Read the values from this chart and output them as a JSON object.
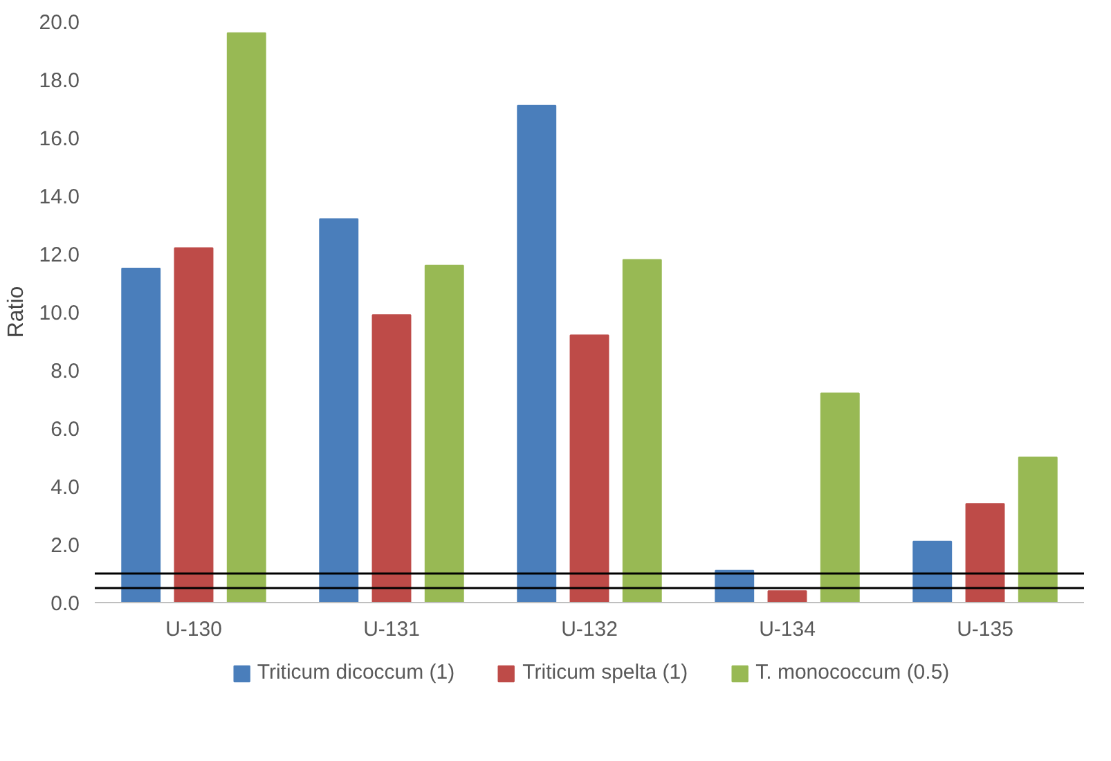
{
  "chart_data": {
    "type": "bar",
    "ylabel": "Ratio",
    "categories": [
      "U-130",
      "U-131",
      "U-132",
      "U-134",
      "U-135"
    ],
    "series": [
      {
        "name": "Triticum dicoccum (1)",
        "color": "#4a7ebb",
        "values": [
          11.5,
          13.2,
          17.1,
          1.1,
          2.1
        ]
      },
      {
        "name": "Triticum spelta (1)",
        "color": "#be4b48",
        "values": [
          12.2,
          9.9,
          9.2,
          0.4,
          3.4
        ]
      },
      {
        "name": "T. monococcum (0.5)",
        "color": "#98b954",
        "values": [
          19.6,
          11.6,
          11.8,
          7.2,
          5.0
        ]
      }
    ],
    "ylim": [
      0,
      20
    ],
    "yticks": [
      {
        "value": 0,
        "label": "0.0"
      },
      {
        "value": 2,
        "label": "2.0"
      },
      {
        "value": 4,
        "label": "4.0"
      },
      {
        "value": 6,
        "label": "6.0"
      },
      {
        "value": 8,
        "label": "8.0"
      },
      {
        "value": 10,
        "label": "10.0"
      },
      {
        "value": 12,
        "label": "12.0"
      },
      {
        "value": 14,
        "label": "14.0"
      },
      {
        "value": 16,
        "label": "16.0"
      },
      {
        "value": 18,
        "label": "18.0"
      },
      {
        "value": 20,
        "label": "20.0"
      }
    ],
    "ref_lines": [
      {
        "axis": "y",
        "value": 1.0,
        "label": null,
        "color": "#000000"
      },
      {
        "axis": "y",
        "value": 0.5,
        "label": null,
        "color": "#000000"
      }
    ],
    "grid": false,
    "legend": "bottom"
  }
}
